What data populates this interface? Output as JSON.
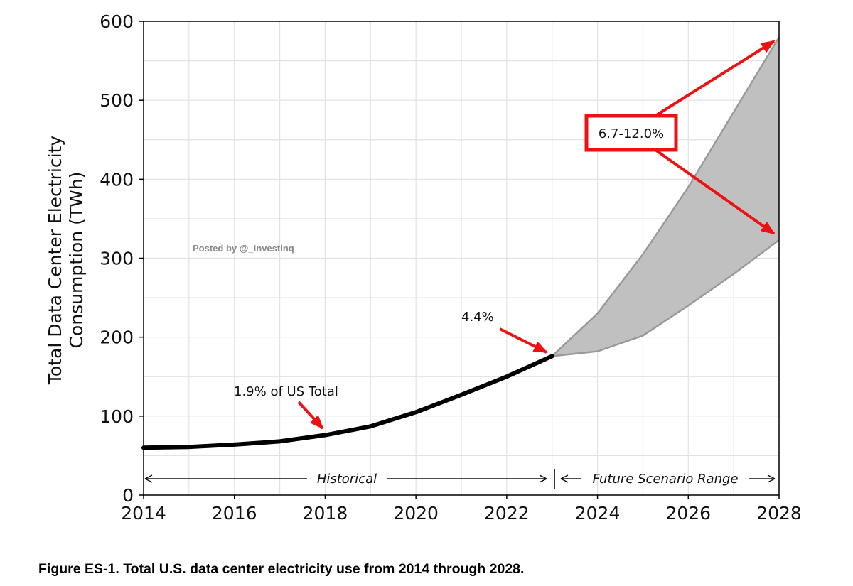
{
  "chart_data": {
    "type": "line",
    "title": "",
    "xlabel": "",
    "ylabel_lines": [
      "Total Data Center Electricity",
      "Consumption (TWh)"
    ],
    "xlim": [
      2014,
      2028
    ],
    "ylim": [
      0,
      600
    ],
    "x_ticks": [
      "2014",
      "2016",
      "2018",
      "2020",
      "2022",
      "2024",
      "2026",
      "2028"
    ],
    "y_ticks": [
      "0",
      "100",
      "200",
      "300",
      "400",
      "500",
      "600"
    ],
    "grid": true,
    "series": [
      {
        "x": [
          2014,
          2015,
          2016,
          2017,
          2018,
          2019,
          2020,
          2021,
          2022,
          2023
        ],
        "y": [
          60,
          61,
          64,
          68,
          76,
          87,
          105,
          127,
          150,
          176
        ]
      }
    ],
    "scenario_range": {
      "x": [
        2023,
        2024,
        2025,
        2026,
        2027,
        2028
      ],
      "upper": [
        176,
        230,
        305,
        390,
        485,
        580
      ],
      "lower": [
        176,
        182,
        202,
        240,
        280,
        323
      ]
    },
    "annotations": {
      "us_total_2018": "1.9% of US Total",
      "share_2023": "4.4%",
      "share_2028": "6.7-12.0%",
      "historical": "Historical",
      "future": "Future Scenario Range"
    },
    "colors": {
      "line": "#000000",
      "range_fill": "#c0c0c0",
      "range_edge": "#9a9a9a",
      "arrow": "#ee1111",
      "grid": "#e2e2e2"
    }
  },
  "watermark": "Posted by @_Investinq",
  "caption": "Figure ES-1. Total U.S. data center electricity use from 2014 through 2028."
}
